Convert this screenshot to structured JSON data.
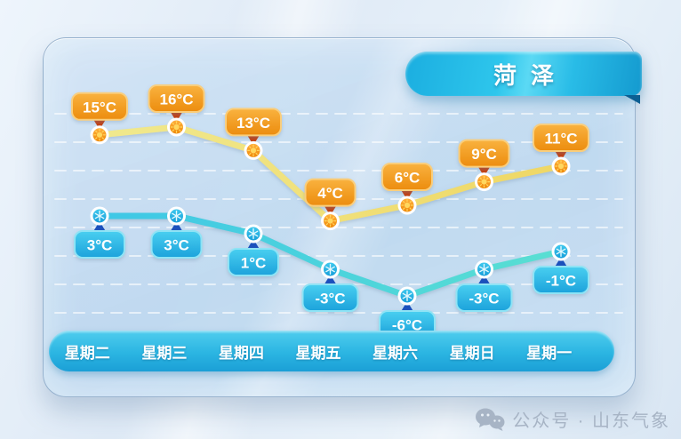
{
  "title": {
    "text": "菏泽"
  },
  "days": [
    "星期二",
    "星期三",
    "星期四",
    "星期五",
    "星期六",
    "星期日",
    "星期一"
  ],
  "watermark": {
    "icon": "wechat-icon",
    "text": "公众号 · 山东气象"
  },
  "chart_data": {
    "type": "line",
    "title": "菏泽",
    "categories": [
      "星期二",
      "星期三",
      "星期四",
      "星期五",
      "星期六",
      "星期日",
      "星期一"
    ],
    "unit": "°C",
    "grid": true,
    "legend": false,
    "series": [
      {
        "name": "high",
        "values": [
          15,
          16,
          13,
          4,
          6,
          9,
          11
        ],
        "labels": [
          "15°C",
          "16°C",
          "13°C",
          "4°C",
          "6°C",
          "9°C",
          "11°C"
        ]
      },
      {
        "name": "low",
        "values": [
          3,
          3,
          1,
          -3,
          -6,
          -3,
          -1
        ],
        "labels": [
          "3°C",
          "3°C",
          "1°C",
          "-3°C",
          "-6°C",
          "-3°C",
          "-1°C"
        ]
      }
    ]
  },
  "colors": {
    "high_badge_top": "#F9B23F",
    "high_badge_bottom": "#EC8C0E",
    "high_badge_border": "#F9CE7D",
    "high_arrow": "#C23E10",
    "high_line_start": "#F0E98E",
    "high_line_end": "#EFD765",
    "high_point_top": "#FFAF3C",
    "high_point_bottom": "#EF8A0B",
    "high_sun": "#FFD75E",
    "low_badge_top": "#49CFF0",
    "low_badge_bottom": "#1CA2DB",
    "low_badge_border": "#8FE3F5",
    "low_arrow": "#1B50BC",
    "low_line_start": "#3EC7E6",
    "low_line_end": "#5ADFD2",
    "low_point_top": "#3FC8EE",
    "low_point_bottom": "#179FDA",
    "low_flake": "#E2F8FD",
    "ribbon": "#1FB4E2",
    "daybar": "#2BB5E2",
    "grid_line": "#FFFFFF"
  }
}
